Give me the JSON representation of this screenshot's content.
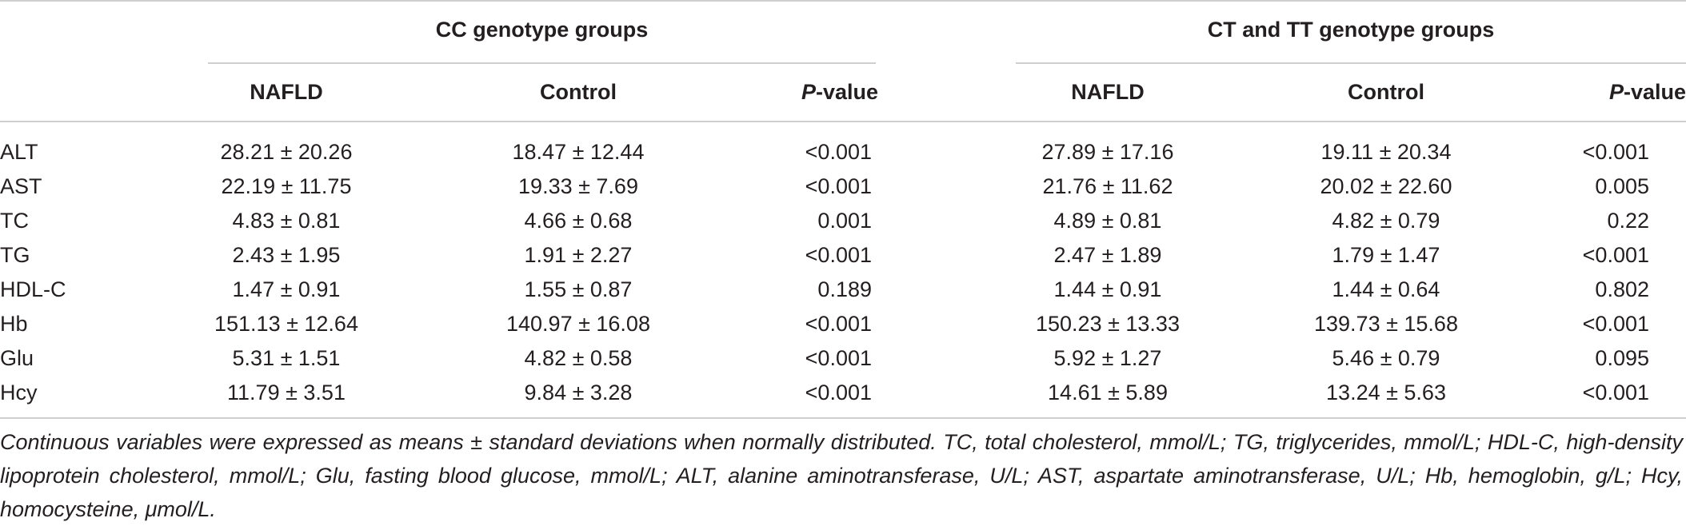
{
  "table": {
    "groups": [
      {
        "label": "CC genotype groups"
      },
      {
        "label": "CT and TT genotype groups"
      }
    ],
    "subheaders": [
      {
        "italic": "",
        "text": "NAFLD"
      },
      {
        "italic": "",
        "text": "Control"
      },
      {
        "italic": "P",
        "text": "-value"
      },
      {
        "italic": "",
        "text": "NAFLD"
      },
      {
        "italic": "",
        "text": "Control"
      },
      {
        "italic": "P",
        "text": "-value"
      }
    ],
    "rows": [
      {
        "label": "ALT",
        "values": [
          "28.21 ± 20.26",
          "18.47 ± 12.44",
          "<0.001",
          "27.89 ± 17.16",
          "19.11 ± 20.34",
          "<0.001"
        ]
      },
      {
        "label": "AST",
        "values": [
          "22.19 ± 11.75",
          "19.33 ± 7.69",
          "<0.001",
          "21.76 ± 11.62",
          "20.02 ± 22.60",
          "0.005"
        ]
      },
      {
        "label": "TC",
        "values": [
          "4.83 ± 0.81",
          "4.66 ± 0.68",
          "0.001",
          "4.89 ± 0.81",
          "4.82 ± 0.79",
          "0.22"
        ]
      },
      {
        "label": "TG",
        "values": [
          "2.43 ± 1.95",
          "1.91 ± 2.27",
          "<0.001",
          "2.47 ± 1.89",
          "1.79 ± 1.47",
          "<0.001"
        ]
      },
      {
        "label": "HDL-C",
        "values": [
          "1.47 ± 0.91",
          "1.55 ± 0.87",
          "0.189",
          "1.44 ± 0.91",
          "1.44 ± 0.64",
          "0.802"
        ]
      },
      {
        "label": "Hb",
        "values": [
          "151.13 ± 12.64",
          "140.97 ± 16.08",
          "<0.001",
          "150.23 ± 13.33",
          "139.73 ± 15.68",
          "<0.001"
        ]
      },
      {
        "label": "Glu",
        "values": [
          "5.31 ± 1.51",
          "4.82 ± 0.58",
          "<0.001",
          "5.92 ± 1.27",
          "5.46 ± 0.79",
          "0.095"
        ]
      },
      {
        "label": "Hcy",
        "values": [
          "11.79 ± 3.51",
          "9.84 ± 3.28",
          "<0.001",
          "14.61 ± 5.89",
          "13.24 ± 5.63",
          "<0.001"
        ]
      }
    ],
    "footnote": "Continuous variables were expressed as means ± standard deviations when normally distributed. TC, total cholesterol, mmol/L; TG, triglycerides, mmol/L; HDL-C, high-density lipoprotein cholesterol, mmol/L; Glu, fasting blood glucose, mmol/L; ALT, alanine aminotransferase, U/L; AST, aspartate aminotransferase, U/L; Hb, hemoglobin, g/L; Hcy, homocysteine, μmol/L."
  }
}
